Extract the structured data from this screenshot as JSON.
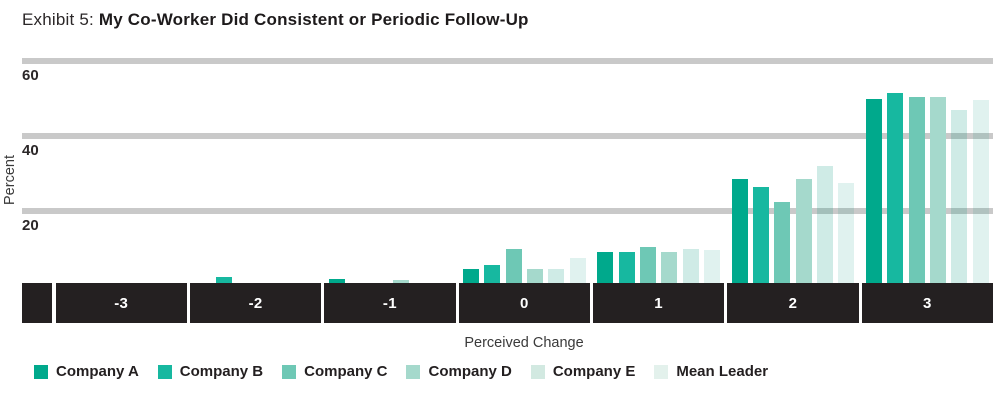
{
  "title": {
    "prefix": "Exhibit 5: ",
    "main": "My Co-Worker Did Consistent or Periodic Follow-Up"
  },
  "chart_data": {
    "type": "bar",
    "title": "Exhibit 5: My Co-Worker Did Consistent or Periodic Follow-Up",
    "xlabel": "Perceived Change",
    "ylabel": "Percent",
    "categories": [
      "-3",
      "-2",
      "-1",
      "0",
      "1",
      "2",
      "3"
    ],
    "series": [
      {
        "name": "Company A",
        "color": "#00A98C",
        "fill": "#00A98C",
        "values": [
          0,
          0,
          2,
          4.5,
          9,
          28.5,
          50
        ]
      },
      {
        "name": "Company B",
        "color": "#17B8A0",
        "fill": "#17B8A0",
        "values": [
          0,
          2.5,
          0,
          5.5,
          9,
          26.5,
          51.5
        ]
      },
      {
        "name": "Company C",
        "color": "#6EC8B5",
        "fill": "#6EC8B5",
        "values": [
          0,
          0,
          0,
          10,
          10.5,
          22.5,
          50.5
        ]
      },
      {
        "name": "Company D",
        "color": "#A5D9CC",
        "fill": "#A5D9CC",
        "values": [
          0,
          0,
          1.5,
          4.5,
          9,
          28.5,
          50.5
        ]
      },
      {
        "name": "Company E",
        "color": "#D2E9E1",
        "fill": "rgba(0,150,120,0.19)",
        "values": [
          0,
          0,
          0,
          4.5,
          10,
          32,
          47
        ]
      },
      {
        "name": "Mean Leader",
        "color": "#E3F1EC",
        "fill": "rgba(0,150,120,0.12)",
        "values": [
          0,
          0,
          0,
          7.5,
          9.5,
          27.5,
          49.5
        ]
      }
    ],
    "yticks": [
      20,
      40,
      60
    ],
    "ylim": [
      0,
      62
    ],
    "grid": true,
    "legend_position": "bottom"
  },
  "colors": {
    "gridline": "#C9C9C9",
    "axis_band": "#242021",
    "axis_band_text": "#FFFFFF",
    "text": "#231F20",
    "background": "#FFFFFF"
  }
}
